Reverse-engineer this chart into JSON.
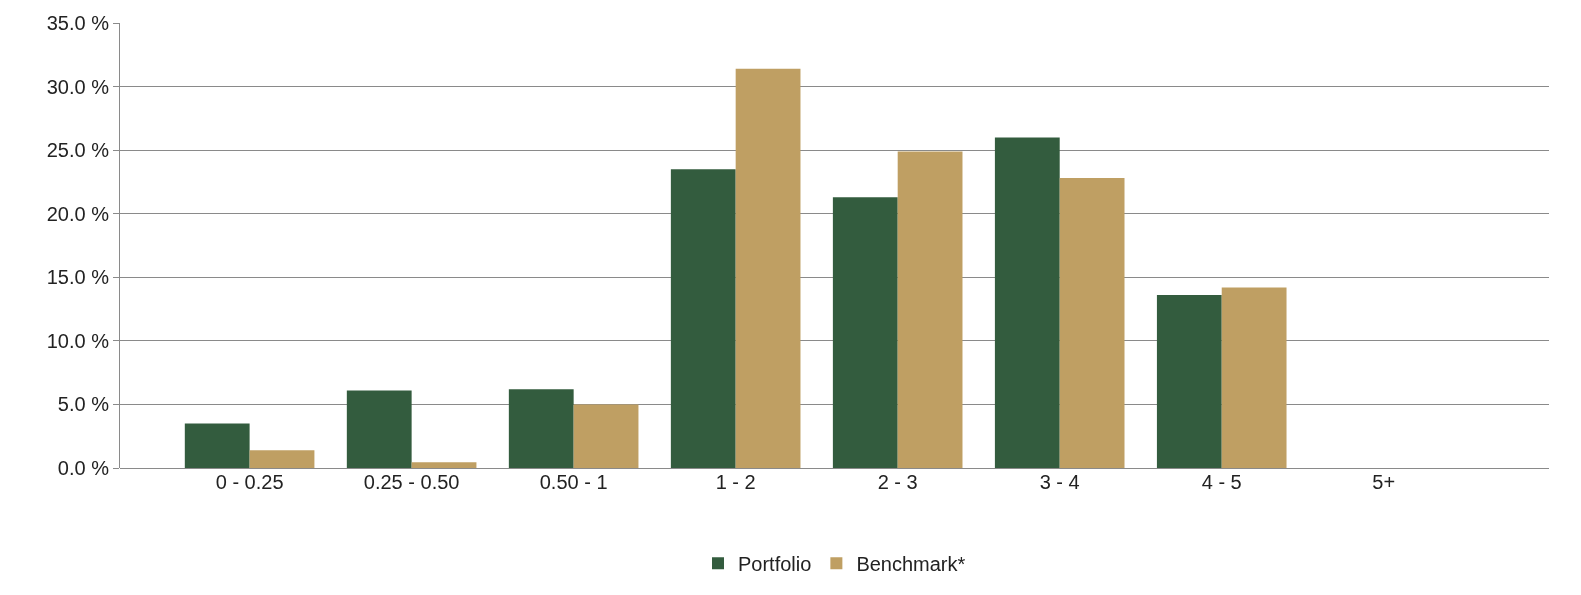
{
  "chart_data": {
    "type": "bar",
    "categories": [
      "0 - 0.25",
      "0.25 - 0.50",
      "0.50 - 1",
      "1 - 2",
      "2 - 3",
      "3 - 4",
      "4 - 5",
      "5+"
    ],
    "series": [
      {
        "name": "Portfolio",
        "color": "#335c3e",
        "values": [
          3.5,
          6.1,
          6.2,
          23.5,
          21.3,
          26.0,
          13.6,
          0
        ]
      },
      {
        "name": "Benchmark*",
        "color": "#bf9f63",
        "values": [
          1.4,
          0.45,
          5.0,
          31.4,
          24.9,
          22.8,
          14.2,
          0
        ]
      }
    ],
    "ylim": [
      0,
      35
    ],
    "yticks": [
      {
        "value": 0,
        "label": "0.0 %"
      },
      {
        "value": 5,
        "label": "5.0 %"
      },
      {
        "value": 10,
        "label": "10.0 %"
      },
      {
        "value": 15,
        "label": "15.0 %"
      },
      {
        "value": 20,
        "label": "20.0 %"
      },
      {
        "value": 25,
        "label": "25.0 %"
      },
      {
        "value": 30,
        "label": "30.0 %"
      },
      {
        "value": 35,
        "label": "35.0 %"
      }
    ],
    "grid": "y",
    "legend": "bottom"
  }
}
